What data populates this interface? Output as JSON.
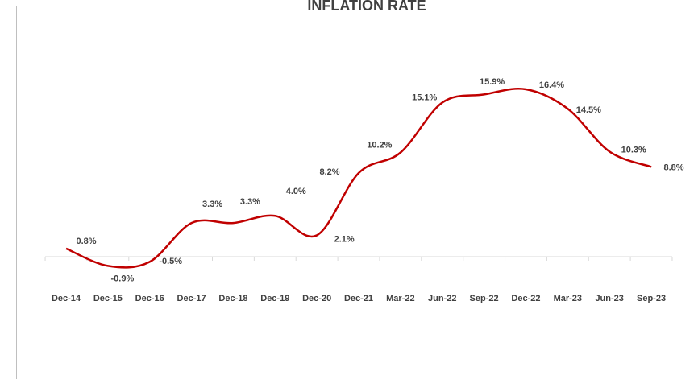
{
  "chart_data": {
    "type": "line",
    "title": "INFLATION RATE",
    "categories": [
      "Dec-14",
      "Dec-15",
      "Dec-16",
      "Dec-17",
      "Dec-18",
      "Dec-19",
      "Dec-20",
      "Dec-21",
      "Mar-22",
      "Jun-22",
      "Sep-22",
      "Dec-22",
      "Mar-23",
      "Jun-23",
      "Sep-23"
    ],
    "series": [
      {
        "color": "#c00000",
        "values": [
          0.8,
          -0.9,
          -0.5,
          3.3,
          3.3,
          4.0,
          2.1,
          8.2,
          10.2,
          15.1,
          15.9,
          16.4,
          14.5,
          10.3,
          8.8
        ],
        "value_labels": [
          "0.8%",
          "-0.9%",
          "-0.5%",
          "3.3%",
          "3.3%",
          "4.0%",
          "2.1%",
          "8.2%",
          "10.2%",
          "15.1%",
          "15.9%",
          "16.4%",
          "14.5%",
          "10.3%",
          "8.8%"
        ]
      }
    ]
  }
}
